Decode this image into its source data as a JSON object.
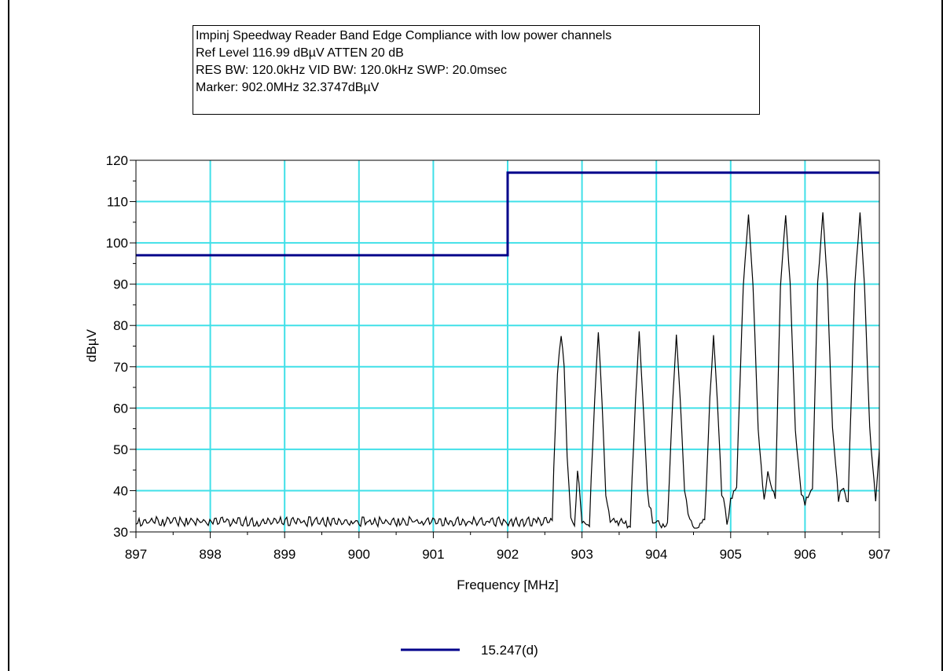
{
  "info_box": {
    "lines": [
      "Impinj Speedway Reader Band Edge Compliance with low power channels",
      "Ref Level 116.99 dBµV    ATTEN 20 dB",
      "RES BW: 120.0kHz  VID BW: 120.0kHz  SWP: 20.0msec",
      "Marker: 902.0MHz  32.3747dBµV"
    ]
  },
  "chart_data": {
    "type": "line",
    "title": "Impinj Speedway Reader Band Edge Compliance with low power channels",
    "xlabel": "Frequency [MHz]",
    "ylabel": "dBµV",
    "xlim": [
      897,
      907
    ],
    "ylim": [
      30,
      120
    ],
    "xticks": [
      "897",
      "898",
      "899",
      "900",
      "901",
      "902",
      "903",
      "904",
      "905",
      "906",
      "907"
    ],
    "yticks": [
      "30",
      "40",
      "50",
      "60",
      "70",
      "80",
      "90",
      "100",
      "110",
      "120"
    ],
    "grid": true,
    "legend_position": "bottom-center",
    "colors": {
      "limit": "#00008b",
      "trace": "#000000",
      "grid": "#40e0e8"
    },
    "series": [
      {
        "name": "15.247(d)",
        "x": [
          897,
          902,
          902,
          907
        ],
        "y": [
          97,
          97,
          117,
          117
        ]
      },
      {
        "x": [
          897,
          902.6,
          902.62,
          902.67,
          902.72,
          902.76,
          902.8,
          902.85,
          902.9,
          902.94,
          903.0,
          903.1,
          903.17,
          903.22,
          903.27,
          903.32,
          903.38,
          903.45,
          903.55,
          903.65,
          903.72,
          903.77,
          903.82,
          903.88,
          903.95,
          904.05,
          904.15,
          904.22,
          904.27,
          904.32,
          904.38,
          904.45,
          904.55,
          904.65,
          904.72,
          904.77,
          904.82,
          904.88,
          904.95,
          905.0,
          905.08,
          905.17,
          905.24,
          905.3,
          905.37,
          905.45,
          905.5,
          905.6,
          905.67,
          905.74,
          905.8,
          905.87,
          905.95,
          906.0,
          906.1,
          906.17,
          906.24,
          906.3,
          906.37,
          906.45,
          906.5,
          906.58,
          906.67,
          906.74,
          906.8,
          906.87,
          906.95,
          907.0
        ],
        "y": [
          32.5,
          32.5,
          45,
          68,
          78,
          70,
          48,
          33,
          32,
          45,
          32,
          32,
          62,
          78,
          62,
          40,
          33,
          33,
          32,
          32,
          62,
          78,
          62,
          40,
          32,
          32,
          32,
          62,
          78,
          62,
          40,
          32,
          32,
          32,
          62,
          78,
          62,
          40,
          32,
          38,
          42,
          90,
          107,
          90,
          55,
          38,
          45,
          38,
          90,
          107,
          90,
          55,
          38,
          37,
          40,
          90,
          107,
          90,
          55,
          38,
          40,
          38,
          90,
          107,
          90,
          55,
          38,
          50
        ]
      }
    ]
  }
}
